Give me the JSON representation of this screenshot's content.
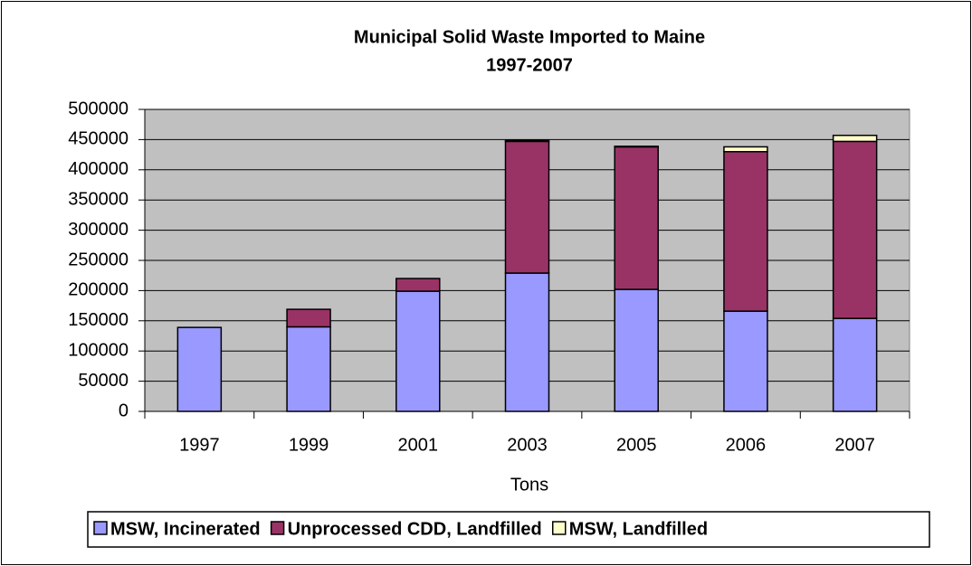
{
  "chart_data": {
    "type": "stacked-bar",
    "title": "Municipal Solid Waste Imported to Maine",
    "subtitle": "1997-2007",
    "x_label": "Tons",
    "categories": [
      "1997",
      "1999",
      "2001",
      "2003",
      "2005",
      "2006",
      "2007"
    ],
    "series": [
      {
        "name": "MSW, Incinerated",
        "color": "#9999ff",
        "values": [
          139000,
          140000,
          199000,
          229000,
          202000,
          166000,
          154000
        ]
      },
      {
        "name": "Unprocessed CDD, Landfilled",
        "color": "#993366",
        "values": [
          0,
          29000,
          21000,
          218000,
          236000,
          264000,
          293000
        ]
      },
      {
        "name": "MSW, Landfilled",
        "color": "#ffffcc",
        "values": [
          0,
          0,
          0,
          2000,
          1000,
          8000,
          10000
        ]
      }
    ],
    "ylim": [
      0,
      500000
    ],
    "yticks": [
      0,
      50000,
      100000,
      150000,
      200000,
      250000,
      300000,
      350000,
      400000,
      450000,
      500000
    ],
    "grid": true,
    "plot_background": "#c0c0c0",
    "legend": "bottom"
  }
}
